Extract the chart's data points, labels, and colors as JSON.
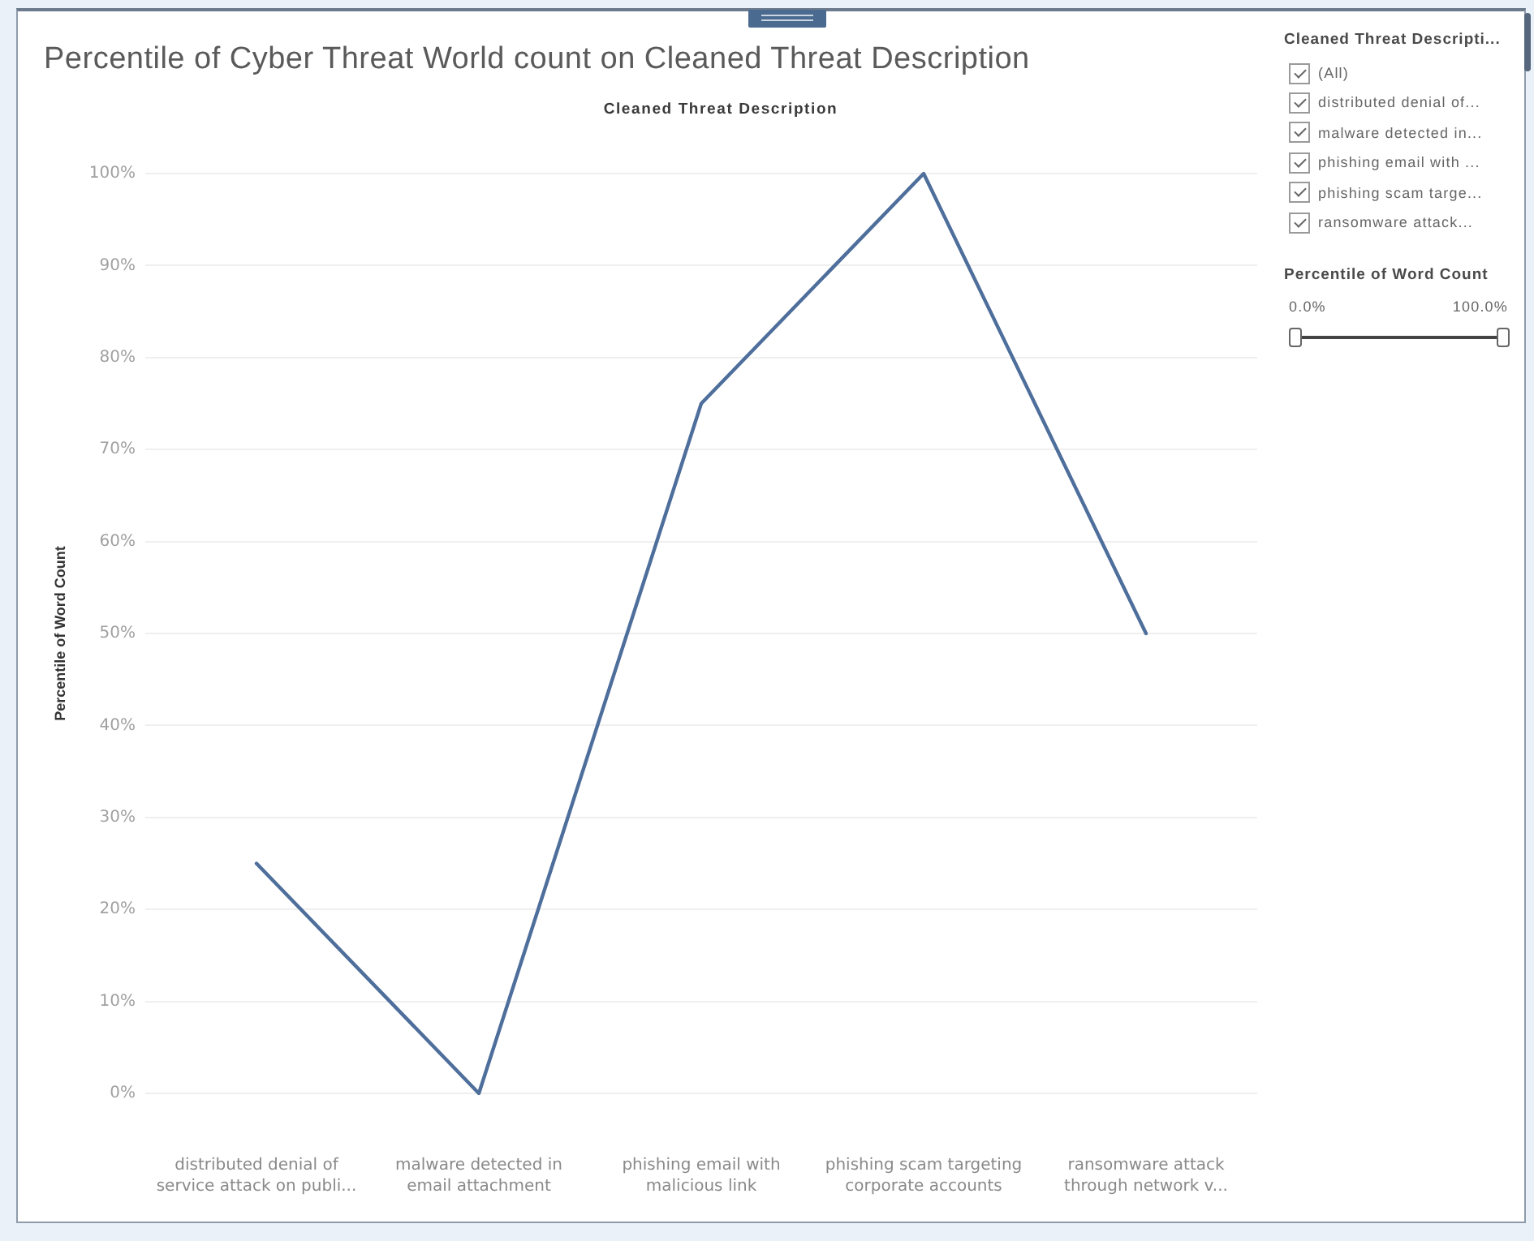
{
  "chart_data": [
    {
      "type": "line",
      "title": "Percentile of Cyber Threat World count on Cleaned Threat Description",
      "xlabel": "Cleaned Threat Description",
      "ylabel": "Percentile of Word Count",
      "categories": [
        "distributed denial of service attack on publi...",
        "malware detected in email attachment",
        "phishing email with malicious link",
        "phishing scam targeting corporate accounts",
        "ransomware attack through network v..."
      ],
      "series": [
        {
          "color": "#4e6e9b",
          "values": [
            25,
            0,
            75,
            100,
            50
          ]
        }
      ],
      "ylim": [
        0,
        100
      ],
      "yticks": [
        {
          "value": 0,
          "label": "0%"
        },
        {
          "value": 10,
          "label": "10%"
        },
        {
          "value": 20,
          "label": "20%"
        },
        {
          "value": 30,
          "label": "30%"
        },
        {
          "value": 40,
          "label": "40%"
        },
        {
          "value": 50,
          "label": "50%"
        },
        {
          "value": 60,
          "label": "60%"
        },
        {
          "value": 70,
          "label": "70%"
        },
        {
          "value": 80,
          "label": "80%"
        },
        {
          "value": 90,
          "label": "90%"
        },
        {
          "value": 100,
          "label": "100%"
        }
      ],
      "grid": "y"
    },
    {
      "type": "other",
      "title": "Cleaned Threat Descripti...",
      "annotations": [
        "(All)",
        "distributed denial of...",
        "malware detected in...",
        "phishing email with ...",
        "phishing scam targe...",
        "ransomware attack..."
      ]
    },
    {
      "type": "other",
      "title": "Percentile of Word Count",
      "annotations": [
        "0.0%",
        "100.0%"
      ]
    }
  ]
}
